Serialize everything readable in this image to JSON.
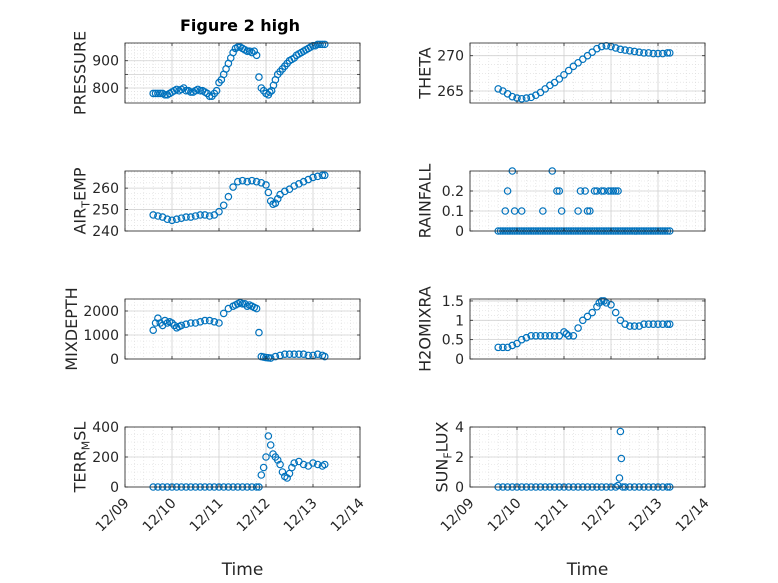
{
  "figure": {
    "title": "Figure 2 high",
    "marker_color": "#0072BD"
  },
  "chart_data": [
    {
      "type": "scatter",
      "id": "pressure",
      "title": "Figure 2 high",
      "ylabel": "PRESSURE",
      "ylim": [
        745,
        965
      ],
      "yticks": [
        800,
        850,
        900
      ],
      "ytick_labels": [
        "800",
        "",
        "900"
      ],
      "xlim": [
        0,
        5
      ],
      "grid": true,
      "show_xtick_labels": false,
      "x": [
        0.6,
        0.65,
        0.7,
        0.75,
        0.8,
        0.85,
        0.9,
        0.95,
        1.0,
        1.05,
        1.1,
        1.15,
        1.2,
        1.25,
        1.3,
        1.35,
        1.4,
        1.45,
        1.5,
        1.55,
        1.6,
        1.65,
        1.7,
        1.75,
        1.8,
        1.85,
        1.9,
        1.95,
        2.0,
        2.05,
        2.1,
        2.15,
        2.2,
        2.25,
        2.3,
        2.35,
        2.4,
        2.45,
        2.5,
        2.55,
        2.6,
        2.65,
        2.7,
        2.75,
        2.8,
        2.85,
        2.9,
        2.95,
        3.0,
        3.05,
        3.08,
        3.12,
        3.16,
        3.2,
        3.25,
        3.3,
        3.35,
        3.4,
        3.45,
        3.5,
        3.55,
        3.6,
        3.65,
        3.7,
        3.75,
        3.8,
        3.85,
        3.9,
        3.95,
        4.0,
        4.05,
        4.1,
        4.15,
        4.2,
        4.25
      ],
      "y": [
        780,
        780,
        780,
        780,
        780,
        775,
        775,
        780,
        785,
        790,
        795,
        790,
        795,
        800,
        790,
        790,
        785,
        785,
        790,
        795,
        790,
        790,
        785,
        780,
        770,
        770,
        780,
        790,
        820,
        830,
        850,
        870,
        890,
        910,
        930,
        945,
        950,
        950,
        945,
        940,
        935,
        935,
        930,
        935,
        920,
        840,
        800,
        790,
        780,
        775,
        785,
        790,
        810,
        830,
        850,
        860,
        870,
        880,
        890,
        900,
        905,
        910,
        920,
        925,
        930,
        935,
        940,
        945,
        950,
        955,
        955,
        960,
        960,
        960,
        960
      ]
    },
    {
      "type": "scatter",
      "id": "theta",
      "ylabel": "THETA",
      "ylim": [
        263.3,
        271.8
      ],
      "yticks": [
        265,
        270
      ],
      "ytick_labels": [
        "265",
        "270"
      ],
      "xlim": [
        0,
        5
      ],
      "grid": true,
      "show_xtick_labels": false,
      "x": [
        0.6,
        0.7,
        0.8,
        0.9,
        1.0,
        1.1,
        1.2,
        1.3,
        1.4,
        1.5,
        1.6,
        1.7,
        1.8,
        1.9,
        2.0,
        2.1,
        2.2,
        2.3,
        2.4,
        2.5,
        2.6,
        2.7,
        2.8,
        2.9,
        3.0,
        3.1,
        3.2,
        3.3,
        3.4,
        3.5,
        3.6,
        3.7,
        3.8,
        3.9,
        4.0,
        4.1,
        4.2,
        4.25
      ],
      "y": [
        265.3,
        265.0,
        264.6,
        264.2,
        264.0,
        263.9,
        264.0,
        264.1,
        264.4,
        264.8,
        265.3,
        265.8,
        266.2,
        266.7,
        267.3,
        267.9,
        268.5,
        269.0,
        269.5,
        270.0,
        270.5,
        271.0,
        271.3,
        271.4,
        271.3,
        271.1,
        270.9,
        270.8,
        270.7,
        270.6,
        270.5,
        270.4,
        270.4,
        270.3,
        270.3,
        270.3,
        270.4,
        270.4
      ]
    },
    {
      "type": "scatter",
      "id": "air_temp",
      "ylabel": "AIR_TEMP",
      "ylabel_parts": [
        "AIR",
        "T",
        "EMP"
      ],
      "ylim": [
        240,
        268
      ],
      "yticks": [
        240,
        250,
        260
      ],
      "ytick_labels": [
        "240",
        "250",
        "260"
      ],
      "xlim": [
        0,
        5
      ],
      "grid": true,
      "show_xtick_labels": false,
      "x": [
        0.6,
        0.7,
        0.8,
        0.9,
        1.0,
        1.1,
        1.2,
        1.3,
        1.4,
        1.5,
        1.6,
        1.7,
        1.8,
        1.9,
        2.0,
        2.1,
        2.2,
        2.3,
        2.4,
        2.5,
        2.6,
        2.7,
        2.8,
        2.9,
        3.0,
        3.05,
        3.1,
        3.15,
        3.2,
        3.25,
        3.3,
        3.4,
        3.5,
        3.6,
        3.7,
        3.8,
        3.9,
        4.0,
        4.1,
        4.2,
        4.25
      ],
      "y": [
        247.5,
        247.0,
        246.5,
        245.5,
        245.0,
        245.5,
        246.0,
        246.5,
        246.5,
        247.0,
        247.5,
        247.5,
        247.0,
        247.5,
        249.0,
        252.0,
        256.0,
        260.5,
        263.0,
        263.5,
        263.0,
        263.5,
        263.0,
        262.5,
        261.5,
        258.0,
        254.0,
        252.5,
        253.0,
        255.0,
        257.0,
        258.5,
        259.5,
        261.0,
        262.0,
        263.0,
        264.0,
        265.0,
        265.5,
        266.0,
        266.0
      ]
    },
    {
      "type": "scatter",
      "id": "rainfall",
      "ylabel": "RAINFALL",
      "ylim": [
        0,
        0.3
      ],
      "yticks": [
        0,
        0.1,
        0.2
      ],
      "ytick_labels": [
        "0",
        "0.1",
        "0.2"
      ],
      "xlim": [
        0,
        5
      ],
      "grid": true,
      "show_xtick_labels": false,
      "x": [
        0.6,
        0.65,
        0.7,
        0.75,
        0.8,
        0.85,
        0.9,
        0.95,
        1.0,
        1.05,
        1.1,
        1.15,
        1.2,
        1.25,
        1.3,
        1.35,
        1.4,
        1.45,
        1.5,
        1.55,
        1.6,
        1.65,
        1.7,
        1.75,
        1.8,
        1.85,
        1.9,
        1.95,
        2.0,
        2.05,
        2.1,
        2.15,
        2.2,
        2.25,
        2.3,
        2.35,
        2.4,
        2.45,
        2.5,
        2.55,
        2.6,
        2.65,
        2.7,
        2.75,
        2.8,
        2.85,
        2.9,
        2.95,
        3.0,
        3.05,
        3.1,
        3.15,
        3.2,
        3.25,
        3.3,
        3.35,
        3.4,
        3.45,
        3.5,
        3.55,
        3.6,
        3.65,
        3.7,
        3.75,
        3.8,
        3.85,
        3.9,
        3.95,
        4.0,
        4.05,
        4.1,
        4.15,
        4.2,
        4.25,
        0.75,
        0.8,
        0.9,
        0.95,
        1.1,
        1.55,
        1.75,
        1.85,
        1.9,
        1.95,
        2.3,
        2.35,
        2.45,
        2.5,
        2.55,
        2.65,
        2.7,
        2.8,
        2.85,
        2.95,
        3.0,
        3.05,
        3.1,
        3.15
      ],
      "y": [
        0,
        0,
        0,
        0,
        0,
        0,
        0,
        0,
        0,
        0,
        0,
        0,
        0,
        0,
        0,
        0,
        0,
        0,
        0,
        0,
        0,
        0,
        0,
        0,
        0,
        0,
        0,
        0,
        0,
        0,
        0,
        0,
        0,
        0,
        0,
        0,
        0,
        0,
        0,
        0,
        0,
        0,
        0,
        0,
        0,
        0,
        0,
        0,
        0,
        0,
        0,
        0,
        0,
        0,
        0,
        0,
        0,
        0,
        0,
        0,
        0,
        0,
        0,
        0,
        0,
        0,
        0,
        0,
        0,
        0,
        0,
        0,
        0,
        0,
        0.1,
        0.2,
        0.3,
        0.1,
        0.1,
        0.1,
        0.3,
        0.2,
        0.2,
        0.1,
        0.1,
        0.2,
        0.2,
        0.1,
        0.1,
        0.2,
        0.2,
        0.2,
        0.2,
        0.2,
        0.2,
        0.2,
        0.2,
        0.2
      ]
    },
    {
      "type": "scatter",
      "id": "mixdepth",
      "ylabel": "MIXDEPTH",
      "ylim": [
        0,
        2500
      ],
      "yticks": [
        0,
        1000,
        2000
      ],
      "ytick_labels": [
        "0",
        "1000",
        "2000"
      ],
      "xlim": [
        0,
        5
      ],
      "grid": true,
      "show_xtick_labels": false,
      "x": [
        0.6,
        0.65,
        0.7,
        0.75,
        0.8,
        0.85,
        0.9,
        0.95,
        1.0,
        1.05,
        1.1,
        1.15,
        1.2,
        1.3,
        1.4,
        1.5,
        1.6,
        1.7,
        1.8,
        1.9,
        2.0,
        2.1,
        2.2,
        2.3,
        2.35,
        2.4,
        2.45,
        2.5,
        2.55,
        2.6,
        2.65,
        2.7,
        2.75,
        2.8,
        2.85,
        2.9,
        2.95,
        3.0,
        3.05,
        3.1,
        3.2,
        3.3,
        3.4,
        3.5,
        3.6,
        3.7,
        3.8,
        3.9,
        4.0,
        4.1,
        4.2,
        4.25
      ],
      "y": [
        1200,
        1500,
        1700,
        1500,
        1400,
        1600,
        1500,
        1550,
        1500,
        1400,
        1300,
        1350,
        1400,
        1450,
        1500,
        1500,
        1550,
        1600,
        1600,
        1550,
        1500,
        1900,
        2100,
        2200,
        2250,
        2300,
        2350,
        2300,
        2300,
        2200,
        2250,
        2200,
        2150,
        2100,
        1100,
        100,
        80,
        60,
        50,
        40,
        100,
        150,
        200,
        200,
        200,
        200,
        200,
        150,
        150,
        200,
        150,
        100
      ]
    },
    {
      "type": "scatter",
      "id": "h2omixra",
      "ylabel": "H2OMIXRA",
      "ylim": [
        0,
        1.55
      ],
      "yticks": [
        0,
        0.5,
        1,
        1.5
      ],
      "ytick_labels": [
        "0",
        "0.5",
        "1",
        "1.5"
      ],
      "xlim": [
        0,
        5
      ],
      "grid": true,
      "show_xtick_labels": false,
      "x": [
        0.6,
        0.7,
        0.8,
        0.9,
        1.0,
        1.1,
        1.2,
        1.3,
        1.4,
        1.5,
        1.6,
        1.7,
        1.8,
        1.9,
        2.0,
        2.05,
        2.1,
        2.2,
        2.3,
        2.4,
        2.5,
        2.6,
        2.7,
        2.75,
        2.8,
        2.85,
        2.9,
        3.0,
        3.1,
        3.2,
        3.3,
        3.4,
        3.5,
        3.6,
        3.7,
        3.8,
        3.9,
        4.0,
        4.1,
        4.2,
        4.25
      ],
      "y": [
        0.3,
        0.3,
        0.3,
        0.35,
        0.4,
        0.5,
        0.55,
        0.6,
        0.6,
        0.6,
        0.6,
        0.6,
        0.6,
        0.6,
        0.7,
        0.65,
        0.6,
        0.6,
        0.8,
        1.0,
        1.1,
        1.2,
        1.35,
        1.45,
        1.5,
        1.5,
        1.45,
        1.4,
        1.2,
        1.0,
        0.9,
        0.85,
        0.85,
        0.85,
        0.9,
        0.9,
        0.9,
        0.9,
        0.9,
        0.9,
        0.9
      ]
    },
    {
      "type": "scatter",
      "id": "terr_msl",
      "ylabel": "TERR_MSL",
      "ylabel_parts": [
        "TERR",
        "M",
        "SL"
      ],
      "ylim": [
        0,
        400
      ],
      "yticks": [
        0,
        200,
        400
      ],
      "ytick_labels": [
        "0",
        "200",
        "400"
      ],
      "xlim": [
        0,
        5
      ],
      "grid": true,
      "show_xtick_labels": true,
      "xlabel": "Time",
      "xticks": [
        0,
        1,
        2,
        3,
        4,
        5
      ],
      "xtick_labels": [
        "12/09",
        "12/10",
        "12/11",
        "12/12",
        "12/13",
        "12/14"
      ],
      "x": [
        0.6,
        0.7,
        0.8,
        0.9,
        1.0,
        1.1,
        1.2,
        1.3,
        1.4,
        1.5,
        1.6,
        1.7,
        1.8,
        1.9,
        2.0,
        2.1,
        2.2,
        2.3,
        2.4,
        2.5,
        2.6,
        2.7,
        2.8,
        2.85,
        2.9,
        2.95,
        3.0,
        3.05,
        3.1,
        3.15,
        3.2,
        3.25,
        3.3,
        3.35,
        3.4,
        3.45,
        3.5,
        3.55,
        3.6,
        3.7,
        3.8,
        3.9,
        4.0,
        4.1,
        4.2,
        4.25
      ],
      "y": [
        0,
        0,
        0,
        0,
        0,
        0,
        0,
        0,
        0,
        0,
        0,
        0,
        0,
        0,
        0,
        0,
        0,
        0,
        0,
        0,
        0,
        0,
        0,
        0,
        80,
        130,
        200,
        340,
        280,
        220,
        200,
        180,
        150,
        100,
        70,
        60,
        90,
        130,
        160,
        170,
        150,
        140,
        160,
        150,
        140,
        150
      ]
    },
    {
      "type": "scatter",
      "id": "sun_flux",
      "ylabel": "SUN_FLUX",
      "ylabel_parts": [
        "SUN",
        "F",
        "LUX"
      ],
      "ylim": [
        0,
        4
      ],
      "yticks": [
        0,
        2,
        4
      ],
      "ytick_labels": [
        "0",
        "2",
        "4"
      ],
      "xlim": [
        0,
        5
      ],
      "grid": true,
      "show_xtick_labels": true,
      "xlabel": "Time",
      "xticks": [
        0,
        1,
        2,
        3,
        4,
        5
      ],
      "xtick_labels": [
        "12/09",
        "12/10",
        "12/11",
        "12/12",
        "12/13",
        "12/14"
      ],
      "x": [
        0.6,
        0.7,
        0.8,
        0.9,
        1.0,
        1.1,
        1.2,
        1.3,
        1.4,
        1.5,
        1.6,
        1.7,
        1.8,
        1.9,
        2.0,
        2.1,
        2.2,
        2.3,
        2.4,
        2.5,
        2.6,
        2.7,
        2.8,
        2.9,
        3.0,
        3.1,
        3.15,
        3.18,
        3.2,
        3.22,
        3.25,
        3.3,
        3.4,
        3.5,
        3.6,
        3.7,
        3.8,
        3.9,
        4.0,
        4.1,
        4.2,
        4.25
      ],
      "y": [
        0,
        0,
        0,
        0,
        0,
        0,
        0,
        0,
        0,
        0,
        0,
        0,
        0,
        0,
        0,
        0,
        0,
        0,
        0,
        0,
        0,
        0,
        0,
        0,
        0,
        0,
        0.1,
        0.6,
        3.7,
        1.9,
        0,
        0,
        0,
        0,
        0,
        0,
        0,
        0,
        0,
        0,
        0,
        0
      ]
    }
  ]
}
